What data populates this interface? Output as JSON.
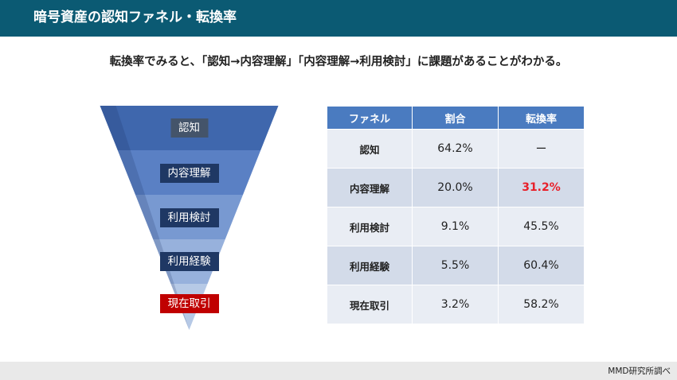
{
  "header": {
    "title": "暗号資産の認知ファネル・転換率"
  },
  "subtitle": "転換率でみると、「認知→内容理解」「内容理解→利用検討」に課題があることがわかる。",
  "colors": {
    "header_bg": "#0b5a73",
    "table_header_bg": "#4a7bc0",
    "row_dark": "#d3dbe9",
    "row_light": "#e9edf4",
    "highlight_text": "#e8202a",
    "label_dark_bg": "#1f3864",
    "label_first_bg": "#44546a",
    "label_last_bg": "#c00000"
  },
  "chart_data": [
    {
      "type": "funnel",
      "stages": [
        "認知",
        "内容理解",
        "利用検討",
        "利用経験",
        "現在取引"
      ],
      "values": [
        64.2,
        20.0,
        9.1,
        5.5,
        3.2
      ]
    },
    {
      "type": "table",
      "columns": [
        "ファネル",
        "割合",
        "転換率"
      ],
      "rows": [
        {
          "stage": "認知",
          "ratio": "64.2%",
          "conversion": "ー",
          "highlight": false
        },
        {
          "stage": "内容理解",
          "ratio": "20.0%",
          "conversion": "31.2%",
          "highlight": true
        },
        {
          "stage": "利用検討",
          "ratio": "9.1%",
          "conversion": "45.5%",
          "highlight": false
        },
        {
          "stage": "利用経験",
          "ratio": "5.5%",
          "conversion": "60.4%",
          "highlight": false
        },
        {
          "stage": "現在取引",
          "ratio": "3.2%",
          "conversion": "58.2%",
          "highlight": false
        }
      ]
    }
  ],
  "footer": {
    "source": "MMD研究所調べ"
  }
}
